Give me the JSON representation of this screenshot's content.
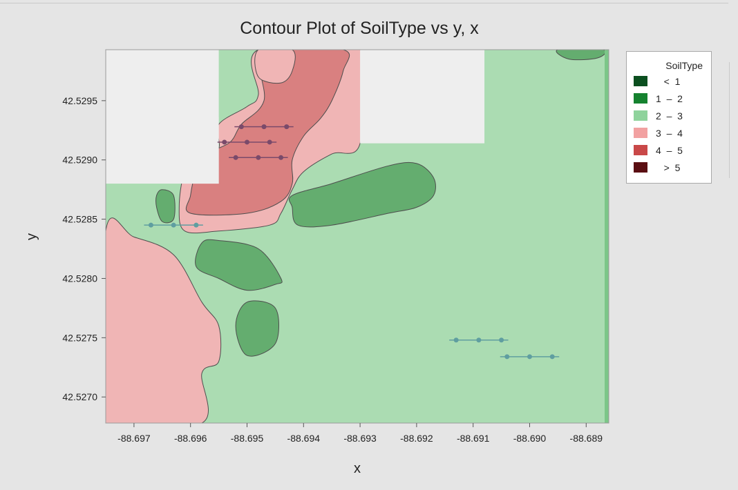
{
  "chart_data": {
    "type": "contour",
    "title": "Contour Plot of SoilType vs y, x",
    "xlabel": "x",
    "ylabel": "y",
    "xlim": [
      -88.6975,
      -88.6886
    ],
    "ylim": [
      42.52678,
      42.52993
    ],
    "x_ticks": [
      -88.697,
      -88.696,
      -88.695,
      -88.694,
      -88.693,
      -88.692,
      -88.691,
      -88.69,
      -88.689
    ],
    "x_tick_labels": [
      "-88.697",
      "-88.696",
      "-88.695",
      "-88.694",
      "-88.693",
      "-88.692",
      "-88.691",
      "-88.690",
      "-88.689"
    ],
    "y_ticks": [
      42.527,
      42.5275,
      42.528,
      42.5285,
      42.529,
      42.5295
    ],
    "y_tick_labels": [
      "42.5270",
      "42.5275",
      "42.5280",
      "42.5285",
      "42.5290",
      "42.5295"
    ],
    "legend": {
      "title": "SoilType",
      "placement": "right",
      "entries": [
        {
          "label": "   <  1",
          "color": "#0b4f1f"
        },
        {
          "label": "1  –  2",
          "color": "#15822f"
        },
        {
          "label": "2  –  3",
          "color": "#8fd39c"
        },
        {
          "label": "3  –  4",
          "color": "#f2a1a1"
        },
        {
          "label": "4  –  5",
          "color": "#c94848"
        },
        {
          "label": "   >  5",
          "color": "#5a0e12"
        }
      ]
    },
    "fill_colors": {
      "background": "#abdcb2",
      "band_2_3": "#abdcb2",
      "band_1_2": "#64ad6f",
      "band_3_4": "#f0b5b5",
      "band_4_5": "#d98080",
      "masked": "#eeeeee"
    },
    "masked_regions": [
      {
        "x": [
          -88.6975,
          -88.6955
        ],
        "y": [
          42.5288,
          42.52993
        ]
      },
      {
        "x": [
          -88.6961,
          -88.6955
        ],
        "y": [
          42.5288,
          42.52936
        ]
      },
      {
        "x": [
          -88.693,
          -88.6908
        ],
        "y": [
          42.52914,
          42.52993
        ]
      }
    ],
    "regions": [
      {
        "level": "1-2",
        "points": [
          [
            -88.695,
            42.5278
          ],
          [
            -88.6945,
            42.52775
          ],
          [
            -88.6945,
            42.52745
          ],
          [
            -88.695,
            42.52735
          ],
          [
            -88.6952,
            42.5276
          ]
        ]
      },
      {
        "level": "1-2",
        "points": [
          [
            -88.6958,
            42.5283
          ],
          [
            -88.6955,
            42.52832
          ],
          [
            -88.6948,
            42.52825
          ],
          [
            -88.6944,
            42.528
          ],
          [
            -88.6945,
            42.52795
          ],
          [
            -88.695,
            42.5279
          ],
          [
            -88.6955,
            42.528
          ],
          [
            -88.6959,
            42.5281
          ]
        ]
      },
      {
        "level": "1-2",
        "points": [
          [
            -88.6942,
            42.5287
          ],
          [
            -88.6935,
            42.5288
          ],
          [
            -88.6925,
            42.52895
          ],
          [
            -88.692,
            42.52897
          ],
          [
            -88.6917,
            42.52885
          ],
          [
            -88.6917,
            42.5287
          ],
          [
            -88.692,
            42.5286
          ],
          [
            -88.6925,
            42.52855
          ],
          [
            -88.6935,
            42.52845
          ],
          [
            -88.6941,
            42.52845
          ],
          [
            -88.6942,
            42.5286
          ]
        ]
      },
      {
        "level": "1-2",
        "points": [
          [
            -88.6966,
            42.5287
          ],
          [
            -88.6965,
            42.52875
          ],
          [
            -88.6963,
            42.5287
          ],
          [
            -88.6963,
            42.5285
          ],
          [
            -88.6965,
            42.52848
          ],
          [
            -88.6966,
            42.5286
          ]
        ]
      },
      {
        "level": "1-2",
        "points": [
          [
            -88.6895,
            42.52993
          ],
          [
            -88.6893,
            42.52985
          ],
          [
            -88.6888,
            42.52986
          ],
          [
            -88.6887,
            42.52993
          ]
        ]
      },
      {
        "level": "3-4",
        "points": [
          [
            -88.6975,
            42.5284
          ],
          [
            -88.697,
            42.52835
          ],
          [
            -88.6963,
            42.5282
          ],
          [
            -88.6958,
            42.5278
          ],
          [
            -88.6955,
            42.5276
          ],
          [
            -88.6955,
            42.5273
          ],
          [
            -88.6958,
            42.5272
          ],
          [
            -88.6958,
            42.52678
          ],
          [
            -88.6975,
            42.52678
          ]
        ]
      },
      {
        "level": "3-4",
        "points": [
          [
            -88.6955,
            42.5293
          ],
          [
            -88.695,
            42.52945
          ],
          [
            -88.6948,
            42.52955
          ],
          [
            -88.6948,
            42.52993
          ],
          [
            -88.693,
            42.52993
          ],
          [
            -88.693,
            42.52914
          ],
          [
            -88.6935,
            42.52905
          ],
          [
            -88.694,
            42.5289
          ],
          [
            -88.6942,
            42.52875
          ],
          [
            -88.6944,
            42.52855
          ],
          [
            -88.6946,
            42.52845
          ],
          [
            -88.6955,
            42.5284
          ],
          [
            -88.6961,
            42.5284
          ],
          [
            -88.6962,
            42.5286
          ],
          [
            -88.6961,
            42.5289
          ],
          [
            -88.6958,
            42.52905
          ],
          [
            -88.6955,
            42.5291
          ]
        ]
      },
      {
        "level": "2-3",
        "points": [
          [
            -88.6958,
            42.52935
          ],
          [
            -88.6957,
            42.5293
          ],
          [
            -88.6957,
            42.5292
          ],
          [
            -88.6958,
            42.52915
          ],
          [
            -88.696,
            42.52915
          ],
          [
            -88.696,
            42.5293
          ]
        ]
      },
      {
        "level": "4-5",
        "points": [
          [
            -88.6951,
            42.5293
          ],
          [
            -88.6947,
            42.5295
          ],
          [
            -88.6947,
            42.52993
          ],
          [
            -88.6933,
            42.52993
          ],
          [
            -88.6933,
            42.52975
          ],
          [
            -88.6935,
            42.5295
          ],
          [
            -88.6937,
            42.52935
          ],
          [
            -88.694,
            42.5292
          ],
          [
            -88.6942,
            42.529
          ],
          [
            -88.6942,
            42.5288
          ],
          [
            -88.6944,
            42.52865
          ],
          [
            -88.695,
            42.52855
          ],
          [
            -88.696,
            42.52855
          ],
          [
            -88.696,
            42.5287
          ],
          [
            -88.6959,
            42.5289
          ],
          [
            -88.6957,
            42.52905
          ],
          [
            -88.6953,
            42.52915
          ]
        ]
      },
      {
        "level": "3-4",
        "points": [
          [
            -88.6948,
            42.52993
          ],
          [
            -88.6948,
            42.5297
          ],
          [
            -88.6944,
            42.52965
          ],
          [
            -88.6942,
            42.52975
          ],
          [
            -88.6942,
            42.52993
          ]
        ]
      }
    ],
    "series": [
      {
        "points": [
          [
            -88.6951,
            42.52928
          ],
          [
            -88.6947,
            42.52928
          ],
          [
            -88.6943,
            42.52928
          ]
        ],
        "color": "#7a4a6a"
      },
      {
        "points": [
          [
            -88.6954,
            42.52915
          ],
          [
            -88.695,
            42.52915
          ],
          [
            -88.6946,
            42.52915
          ]
        ],
        "color": "#7a4a6a"
      },
      {
        "points": [
          [
            -88.6952,
            42.52902
          ],
          [
            -88.6948,
            42.52902
          ],
          [
            -88.6944,
            42.52902
          ]
        ],
        "color": "#7a4a6a"
      },
      {
        "points": [
          [
            -88.6967,
            42.52845
          ],
          [
            -88.6963,
            42.52845
          ],
          [
            -88.6959,
            42.52845
          ]
        ],
        "color": "#5f9ea0"
      },
      {
        "points": [
          [
            -88.6913,
            42.52748
          ],
          [
            -88.6909,
            42.52748
          ],
          [
            -88.6905,
            42.52748
          ]
        ],
        "color": "#5f9ea0"
      },
      {
        "points": [
          [
            -88.6904,
            42.52734
          ],
          [
            -88.69,
            42.52734
          ],
          [
            -88.6896,
            42.52734
          ]
        ],
        "color": "#5f9ea0"
      }
    ]
  }
}
